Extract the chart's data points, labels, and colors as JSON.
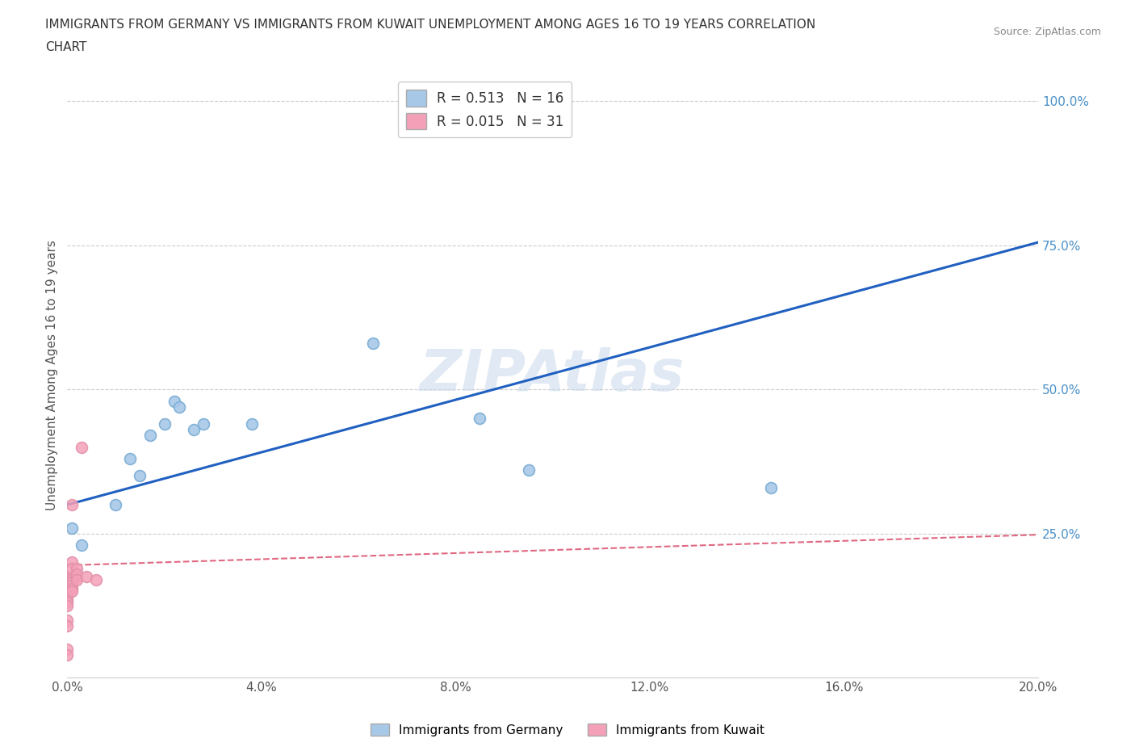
{
  "title": "IMMIGRANTS FROM GERMANY VS IMMIGRANTS FROM KUWAIT UNEMPLOYMENT AMONG AGES 16 TO 19 YEARS CORRELATION\nCHART",
  "source": "Source: ZipAtlas.com",
  "ylabel": "Unemployment Among Ages 16 to 19 years",
  "x_min": 0.0,
  "x_max": 0.2,
  "y_min": 0.0,
  "y_max": 1.05,
  "watermark": "ZIPAtlas",
  "legend_entries": [
    {
      "label": "R = 0.513   N = 16",
      "color": "#a8c8e8"
    },
    {
      "label": "R = 0.015   N = 31",
      "color": "#f4a0b8"
    }
  ],
  "germany_scatter": [
    [
      0.001,
      0.26
    ],
    [
      0.003,
      0.23
    ],
    [
      0.01,
      0.3
    ],
    [
      0.013,
      0.38
    ],
    [
      0.015,
      0.35
    ],
    [
      0.017,
      0.42
    ],
    [
      0.02,
      0.44
    ],
    [
      0.022,
      0.48
    ],
    [
      0.023,
      0.47
    ],
    [
      0.026,
      0.43
    ],
    [
      0.028,
      0.44
    ],
    [
      0.038,
      0.44
    ],
    [
      0.063,
      0.58
    ],
    [
      0.085,
      0.45
    ],
    [
      0.095,
      0.36
    ],
    [
      0.145,
      0.33
    ]
  ],
  "kuwait_scatter": [
    [
      0.0,
      0.175
    ],
    [
      0.0,
      0.17
    ],
    [
      0.0,
      0.165
    ],
    [
      0.0,
      0.16
    ],
    [
      0.0,
      0.155
    ],
    [
      0.0,
      0.15
    ],
    [
      0.0,
      0.145
    ],
    [
      0.0,
      0.14
    ],
    [
      0.0,
      0.135
    ],
    [
      0.0,
      0.13
    ],
    [
      0.0,
      0.125
    ],
    [
      0.0,
      0.1
    ],
    [
      0.0,
      0.09
    ],
    [
      0.0,
      0.05
    ],
    [
      0.0,
      0.04
    ],
    [
      0.001,
      0.175
    ],
    [
      0.001,
      0.17
    ],
    [
      0.001,
      0.165
    ],
    [
      0.001,
      0.16
    ],
    [
      0.001,
      0.155
    ],
    [
      0.001,
      0.15
    ],
    [
      0.001,
      0.2
    ],
    [
      0.001,
      0.19
    ],
    [
      0.001,
      0.3
    ],
    [
      0.002,
      0.175
    ],
    [
      0.002,
      0.19
    ],
    [
      0.002,
      0.18
    ],
    [
      0.002,
      0.17
    ],
    [
      0.003,
      0.4
    ],
    [
      0.004,
      0.175
    ],
    [
      0.006,
      0.17
    ]
  ],
  "germany_line": {
    "x0": 0.0,
    "y0": 0.3,
    "x1": 0.2,
    "y1": 0.755
  },
  "kuwait_line": {
    "x0": 0.0,
    "y0": 0.195,
    "x1": 0.2,
    "y1": 0.248
  },
  "germany_line_color": "#2060c0",
  "kuwait_line_color": "#e06880",
  "germany_scatter_color": "#a8c8e8",
  "kuwait_scatter_color": "#f4a0b8",
  "scatter_size": 100,
  "right_yticks": [
    0.0,
    0.25,
    0.5,
    0.75,
    1.0
  ],
  "right_yticklabels": [
    "",
    "25.0%",
    "50.0%",
    "75.0%",
    "100.0%"
  ],
  "x_ticks": [
    0.0,
    0.04,
    0.08,
    0.12,
    0.16,
    0.2
  ],
  "x_ticklabels": [
    "0.0%",
    "4.0%",
    "8.0%",
    "12.0%",
    "16.0%",
    "20.0%"
  ],
  "bottom_legend_labels": [
    "Immigrants from Germany",
    "Immigrants from Kuwait"
  ],
  "bottom_legend_colors": [
    "#a8c8e8",
    "#f4a0b8"
  ]
}
